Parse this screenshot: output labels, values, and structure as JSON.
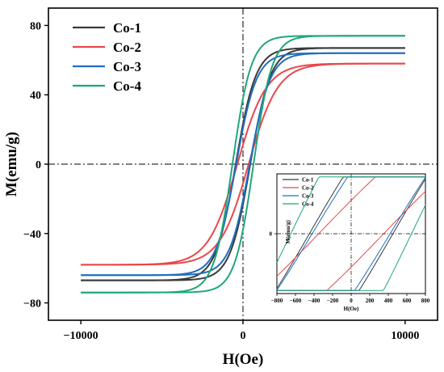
{
  "chart_data": [
    {
      "type": "line",
      "title": "",
      "xlabel": "H(Oe)",
      "ylabel": "M(emu/g)",
      "xlim": [
        -12000,
        12000
      ],
      "ylim": [
        -90,
        90
      ],
      "x_ticks": [
        -10000,
        0,
        10000
      ],
      "y_ticks": [
        -80,
        -40,
        0,
        40,
        80
      ],
      "grid": false,
      "legend_position": "top-left",
      "reference_lines": {
        "x": 0,
        "y": 0,
        "style": "dash-dot"
      },
      "series": [
        {
          "name": "Co-1",
          "color": "#3a3a3a",
          "Ms": 67,
          "Hc": 450,
          "width": 1250,
          "upper": [
            [
              -10000,
              -67
            ],
            [
              -5000,
              -63
            ],
            [
              -2000,
              -54
            ],
            [
              -1000,
              -40
            ],
            [
              -500,
              -24
            ],
            [
              0,
              -14
            ],
            [
              500,
              8
            ],
            [
              1000,
              34
            ],
            [
              2000,
              55
            ],
            [
              5000,
              64
            ],
            [
              10000,
              67
            ]
          ],
          "lower": [
            [
              -10000,
              -67
            ],
            [
              -5000,
              -64
            ],
            [
              -2000,
              -55
            ],
            [
              -1000,
              -34
            ],
            [
              -500,
              -8
            ],
            [
              0,
              14
            ],
            [
              500,
              24
            ],
            [
              1000,
              40
            ],
            [
              2000,
              54
            ],
            [
              5000,
              63
            ],
            [
              10000,
              67
            ]
          ]
        },
        {
          "name": "Co-2",
          "color": "#e8474b",
          "Ms": 58,
          "Hc": 350,
          "width": 1800,
          "upper": [
            [
              -10000,
              -58
            ],
            [
              -5000,
              -54
            ],
            [
              -2000,
              -44
            ],
            [
              -1000,
              -33
            ],
            [
              -500,
              -24
            ],
            [
              0,
              -12
            ],
            [
              500,
              7
            ],
            [
              1000,
              27
            ],
            [
              2000,
              43
            ],
            [
              5000,
              54
            ],
            [
              10000,
              58
            ]
          ],
          "lower": [
            [
              -10000,
              -58
            ],
            [
              -5000,
              -54
            ],
            [
              -2000,
              -43
            ],
            [
              -1000,
              -27
            ],
            [
              -500,
              -7
            ],
            [
              0,
              12
            ],
            [
              500,
              24
            ],
            [
              1000,
              33
            ],
            [
              2000,
              44
            ],
            [
              5000,
              54
            ],
            [
              10000,
              58
            ]
          ]
        },
        {
          "name": "Co-3",
          "color": "#1f6fbf",
          "Ms": 64,
          "Hc": 420,
          "width": 1250,
          "upper": [
            [
              -10000,
              -64
            ],
            [
              -5000,
              -60
            ],
            [
              -2000,
              -52
            ],
            [
              -1000,
              -38
            ],
            [
              -500,
              -23
            ],
            [
              0,
              -13
            ],
            [
              500,
              8
            ],
            [
              1000,
              32
            ],
            [
              2000,
              52
            ],
            [
              5000,
              61
            ],
            [
              10000,
              64
            ]
          ],
          "lower": [
            [
              -10000,
              -64
            ],
            [
              -5000,
              -61
            ],
            [
              -2000,
              -52
            ],
            [
              -1000,
              -32
            ],
            [
              -500,
              -8
            ],
            [
              0,
              13
            ],
            [
              500,
              23
            ],
            [
              1000,
              38
            ],
            [
              2000,
              52
            ],
            [
              5000,
              60
            ],
            [
              10000,
              64
            ]
          ]
        },
        {
          "name": "Co-4",
          "color": "#1fa77a",
          "Ms": 74,
          "Hc": 650,
          "width": 1150,
          "upper": [
            [
              -10000,
              -74
            ],
            [
              -5000,
              -70
            ],
            [
              -2000,
              -62
            ],
            [
              -1000,
              -52
            ],
            [
              -500,
              -37
            ],
            [
              0,
              -18
            ],
            [
              500,
              -3
            ],
            [
              1000,
              30
            ],
            [
              2000,
              60
            ],
            [
              5000,
              70
            ],
            [
              10000,
              74
            ]
          ],
          "lower": [
            [
              -10000,
              -74
            ],
            [
              -5000,
              -70
            ],
            [
              -2000,
              -60
            ],
            [
              -1000,
              -30
            ],
            [
              -500,
              3
            ],
            [
              0,
              18
            ],
            [
              500,
              37
            ],
            [
              1000,
              52
            ],
            [
              2000,
              62
            ],
            [
              5000,
              70
            ],
            [
              10000,
              74
            ]
          ]
        }
      ]
    },
    {
      "type": "line",
      "title": "",
      "xlabel": "H(Oe)",
      "ylabel": "M(emu/g)",
      "xlim": [
        -800,
        800
      ],
      "ylim": [
        -20,
        20
      ],
      "x_ticks": [
        -800,
        -600,
        -400,
        -200,
        0,
        200,
        400,
        600,
        800
      ],
      "y_ticks": [
        0
      ],
      "grid": false,
      "legend_position": "top-left",
      "reference_lines": {
        "x": 0,
        "y": 0,
        "style": "dash-dot"
      },
      "series_names": [
        "Co-1",
        "Co-2",
        "Co-3",
        "Co-4"
      ],
      "series_colors": [
        "#3a3a3a",
        "#e8474b",
        "#1f6fbf",
        "#1fa77a"
      ]
    }
  ]
}
